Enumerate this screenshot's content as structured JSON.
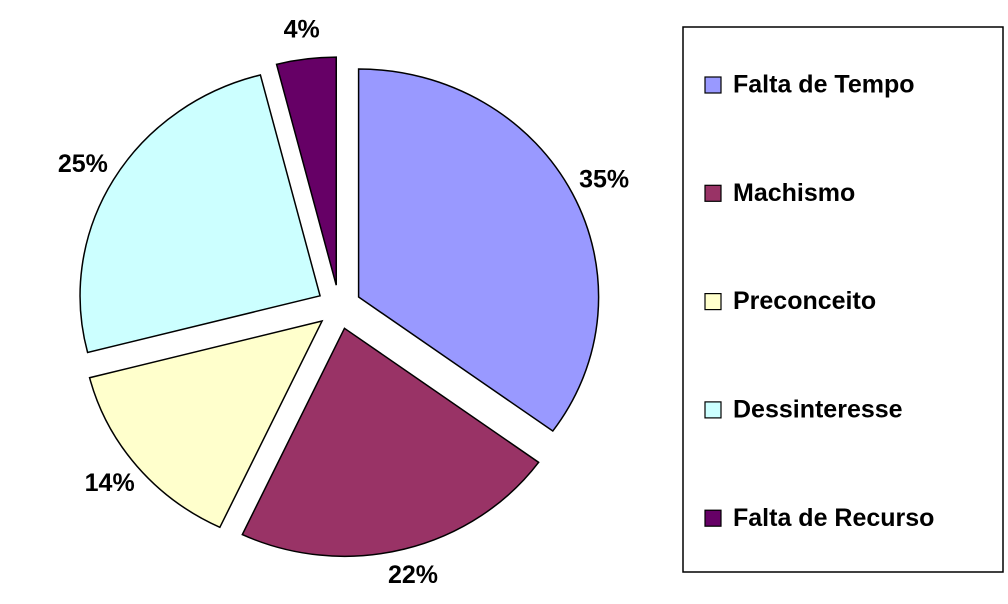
{
  "chart_data": {
    "type": "pie",
    "categories": [
      "Falta de Tempo",
      "Machismo",
      "Preconceito",
      "Dessinteresse",
      "Falta de Recurso"
    ],
    "values": [
      35,
      22,
      14,
      25,
      4
    ],
    "value_labels": [
      "35%",
      "22%",
      "14%",
      "25%",
      "4%"
    ],
    "colors": [
      "#9999ff",
      "#993366",
      "#ffffcc",
      "#ccffff",
      "#660066"
    ],
    "legend": "right"
  }
}
